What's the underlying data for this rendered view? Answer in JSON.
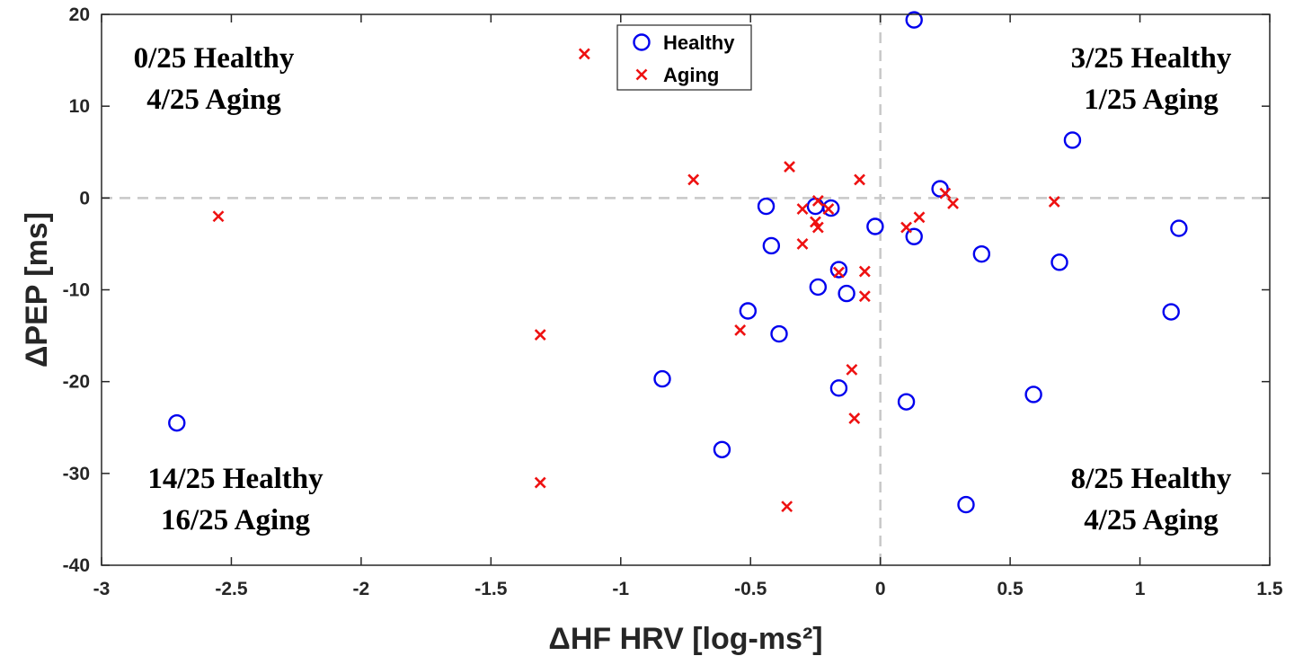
{
  "chart_data": {
    "type": "scatter",
    "xlabel": "ΔHF HRV [log-ms²]",
    "ylabel": "ΔPEP [ms]",
    "xlim": [
      -3,
      1.5
    ],
    "ylim": [
      -40,
      20
    ],
    "xticks": [
      "-3",
      "-2.5",
      "-2",
      "-1.5",
      "-1",
      "-0.5",
      "0",
      "0.5",
      "1",
      "1.5"
    ],
    "yticks": [
      "-40",
      "-30",
      "-20",
      "-10",
      "0",
      "10",
      "20"
    ],
    "reference_lines": {
      "x": 0,
      "y": 0,
      "style": "dashed"
    },
    "legend": {
      "position": "top-center"
    },
    "colors": {
      "Healthy": "#0000ee",
      "Aging": "#ee1111",
      "reference": "#c8c8c8"
    },
    "series": [
      {
        "name": "Healthy",
        "marker": "circle",
        "points": [
          [
            0.13,
            19.4
          ],
          [
            0.74,
            6.3
          ],
          [
            0.23,
            1.0
          ],
          [
            -0.44,
            -0.9
          ],
          [
            -0.25,
            -0.9
          ],
          [
            -0.19,
            -1.1
          ],
          [
            -0.02,
            -3.1
          ],
          [
            0.13,
            -4.2
          ],
          [
            -0.42,
            -5.2
          ],
          [
            0.39,
            -6.1
          ],
          [
            0.69,
            -7.0
          ],
          [
            1.15,
            -3.3
          ],
          [
            -0.16,
            -7.8
          ],
          [
            -0.24,
            -9.7
          ],
          [
            -0.13,
            -10.4
          ],
          [
            -0.51,
            -12.3
          ],
          [
            -0.39,
            -14.8
          ],
          [
            1.12,
            -12.4
          ],
          [
            -0.84,
            -19.7
          ],
          [
            -0.16,
            -20.7
          ],
          [
            0.1,
            -22.2
          ],
          [
            0.59,
            -21.4
          ],
          [
            -2.71,
            -24.5
          ],
          [
            -0.61,
            -27.4
          ],
          [
            0.33,
            -33.4
          ]
        ]
      },
      {
        "name": "Aging",
        "marker": "x",
        "points": [
          [
            -1.14,
            15.7
          ],
          [
            -0.72,
            2.0
          ],
          [
            -0.35,
            3.4
          ],
          [
            -0.08,
            2.0
          ],
          [
            -2.55,
            -2.0
          ],
          [
            0.67,
            -0.4
          ],
          [
            0.28,
            -0.6
          ],
          [
            0.25,
            0.5
          ],
          [
            -0.24,
            -0.3
          ],
          [
            -0.3,
            -1.2
          ],
          [
            -0.2,
            -1.2
          ],
          [
            -0.25,
            -2.6
          ],
          [
            -0.24,
            -3.2
          ],
          [
            0.15,
            -2.1
          ],
          [
            0.1,
            -3.2
          ],
          [
            -0.3,
            -5.0
          ],
          [
            -0.16,
            -8.1
          ],
          [
            -0.06,
            -8.0
          ],
          [
            -0.06,
            -10.7
          ],
          [
            -0.54,
            -14.4
          ],
          [
            -1.31,
            -14.9
          ],
          [
            -0.11,
            -18.7
          ],
          [
            -0.1,
            -24.0
          ],
          [
            -1.31,
            -31.0
          ],
          [
            -0.36,
            -33.6
          ]
        ]
      }
    ],
    "annotations": [
      {
        "position": "top-left",
        "lines": [
          "0/25 Healthy",
          "4/25 Aging"
        ]
      },
      {
        "position": "top-right",
        "lines": [
          "3/25 Healthy",
          "1/25 Aging"
        ]
      },
      {
        "position": "bottom-left",
        "lines": [
          "14/25 Healthy",
          "16/25 Aging"
        ]
      },
      {
        "position": "bottom-right",
        "lines": [
          "8/25 Healthy",
          "4/25 Aging"
        ]
      }
    ]
  }
}
